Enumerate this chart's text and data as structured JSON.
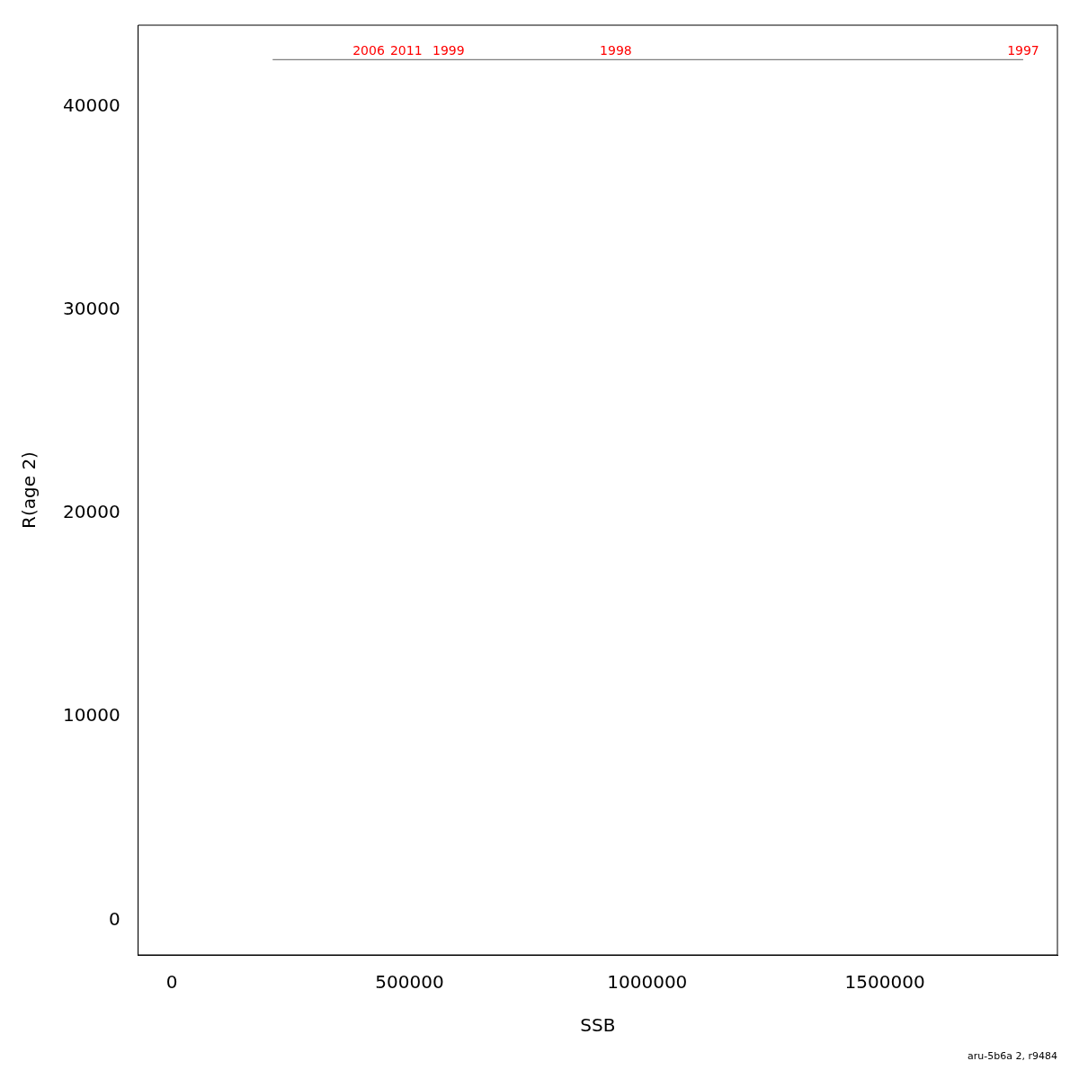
{
  "chart_data": {
    "type": "line",
    "xlabel": "SSB",
    "ylabel": "R(age 2)",
    "x": [
      1791000,
      212000
    ],
    "series": [
      {
        "color": "#808080",
        "values": [
          42300,
          42300
        ]
      }
    ],
    "xlim": [
      -71000,
      1863000
    ],
    "ylim": [
      -1700,
      44000
    ],
    "xticks": [
      0,
      500000,
      1000000,
      1500000
    ],
    "yticks": [
      0,
      10000,
      20000,
      30000,
      40000
    ],
    "grid": false,
    "legend": false,
    "marker": "none",
    "line_style": "solid",
    "annotations": [
      {
        "text": "1997",
        "x": 1791000,
        "y": 42300
      },
      {
        "text": "1998",
        "x": 934000,
        "y": 42300
      },
      {
        "text": "1999",
        "x": 582000,
        "y": 42300
      },
      {
        "text": "2006",
        "x": 414000,
        "y": 42300
      },
      {
        "text": "2011",
        "x": 493000,
        "y": 42300
      },
      "aru-5b6a 2, r9484"
    ]
  }
}
